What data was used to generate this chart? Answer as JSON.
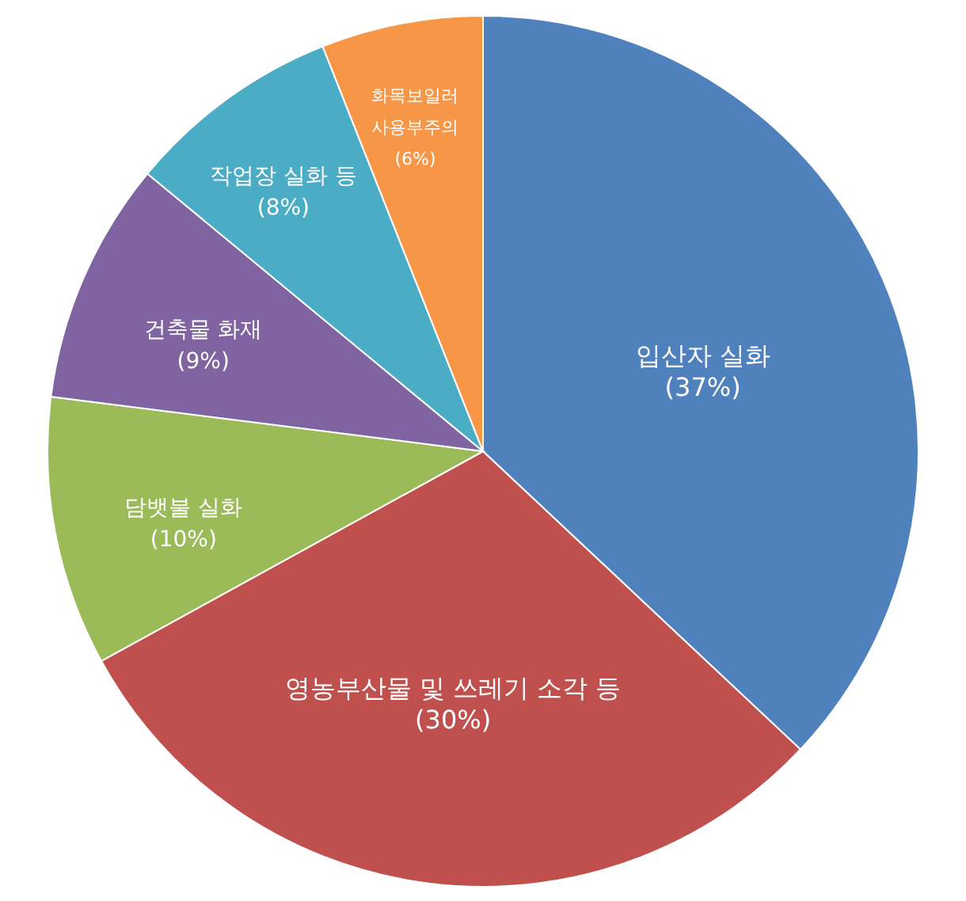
{
  "chart_data": {
    "type": "pie",
    "categories": [
      "입산자 실화",
      "영농부산물 및 쓰레기 소각 등",
      "담뱃불 실화",
      "건축물 화재",
      "작업장 실화 등",
      "화목보일러\n사용부주의"
    ],
    "values": [
      37,
      30,
      10,
      9,
      8,
      6
    ],
    "value_labels": [
      "(37%)",
      "(30%)",
      "(10%)",
      "(9%)",
      "(8%)",
      "(6%)"
    ],
    "colors": [
      "#4f81bd",
      "#c0504d",
      "#9bbb59",
      "#8064a2",
      "#4bacc6",
      "#f79646"
    ]
  }
}
